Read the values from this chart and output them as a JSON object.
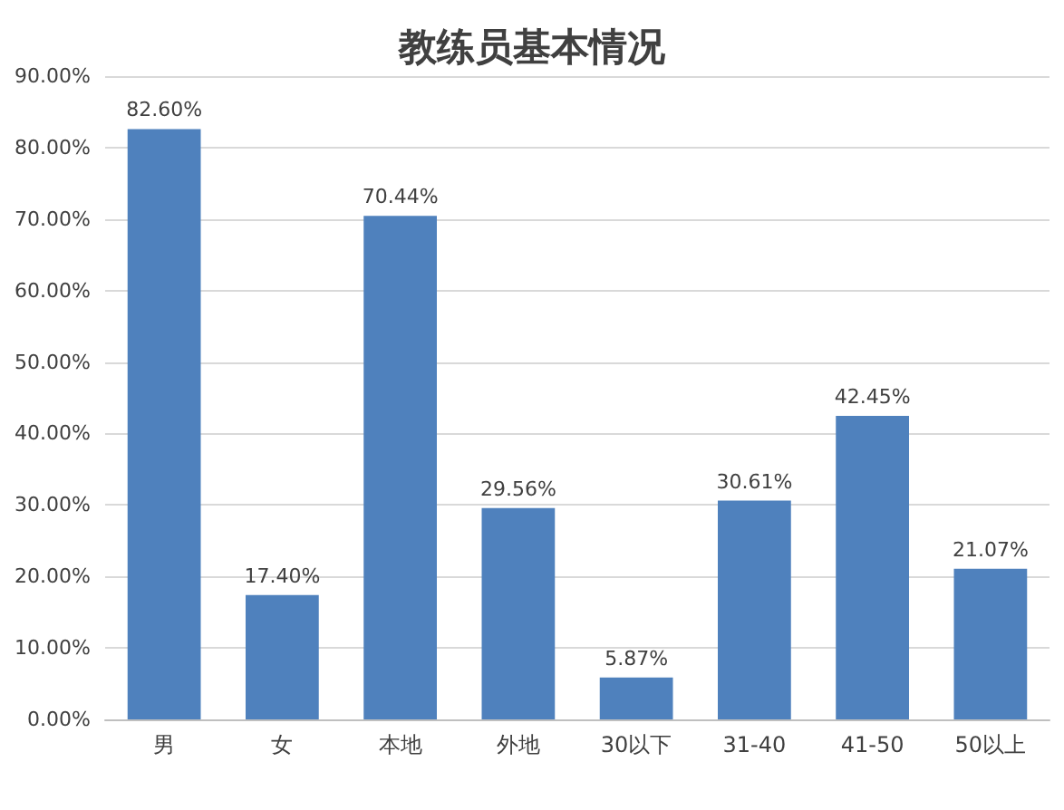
{
  "chart_data": {
    "type": "bar",
    "title": "教练员基本情况",
    "categories": [
      "男",
      "女",
      "本地",
      "外地",
      "30以下",
      "31-40",
      "41-50",
      "50以上"
    ],
    "values": [
      82.6,
      17.4,
      70.44,
      29.56,
      5.87,
      30.61,
      42.45,
      21.07
    ],
    "value_labels": [
      "82.60%",
      "17.40%",
      "70.44%",
      "29.56%",
      "5.87%",
      "30.61%",
      "42.45%",
      "21.07%"
    ],
    "color": "#4f81bd",
    "ylim": [
      0,
      90
    ],
    "yticks": [
      {
        "value": 0,
        "label": "0.00%"
      },
      {
        "value": 10,
        "label": "10.00%"
      },
      {
        "value": 20,
        "label": "20.00%"
      },
      {
        "value": 30,
        "label": "30.00%"
      },
      {
        "value": 40,
        "label": "40.00%"
      },
      {
        "value": 50,
        "label": "50.00%"
      },
      {
        "value": 60,
        "label": "60.00%"
      },
      {
        "value": 70,
        "label": "70.00%"
      },
      {
        "value": 80,
        "label": "80.00%"
      },
      {
        "value": 90,
        "label": "90.00%"
      }
    ],
    "grid": "y"
  }
}
